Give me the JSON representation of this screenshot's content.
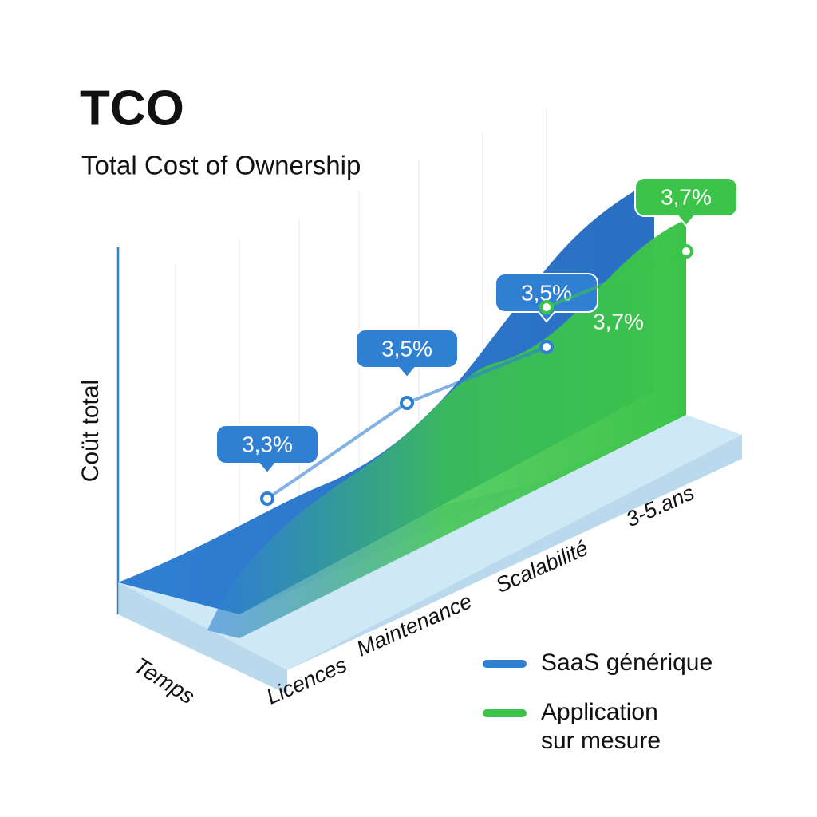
{
  "chart_data": {
    "type": "area",
    "title": "TCO",
    "subtitle": "Total Cost of Ownership",
    "x_label": "Temps",
    "y_label": "Coüt total",
    "categories": [
      "Licences",
      "Maintenance",
      "Scalabilité",
      "3-5.ans"
    ],
    "ylim": [
      3.0,
      3.8
    ],
    "series": [
      {
        "name": "SaaS générique",
        "color": "#2f7fd3",
        "values": [
          3.3,
          3.5,
          3.5,
          null
        ],
        "value_labels": [
          "3,3%",
          "3,5%",
          "3,5%",
          null
        ]
      },
      {
        "name": "Application sur mesure",
        "color": "#3cc44a",
        "values": [
          null,
          null,
          3.7,
          3.7
        ],
        "value_labels": [
          null,
          null,
          "3,7%",
          "3,7%"
        ]
      }
    ]
  }
}
